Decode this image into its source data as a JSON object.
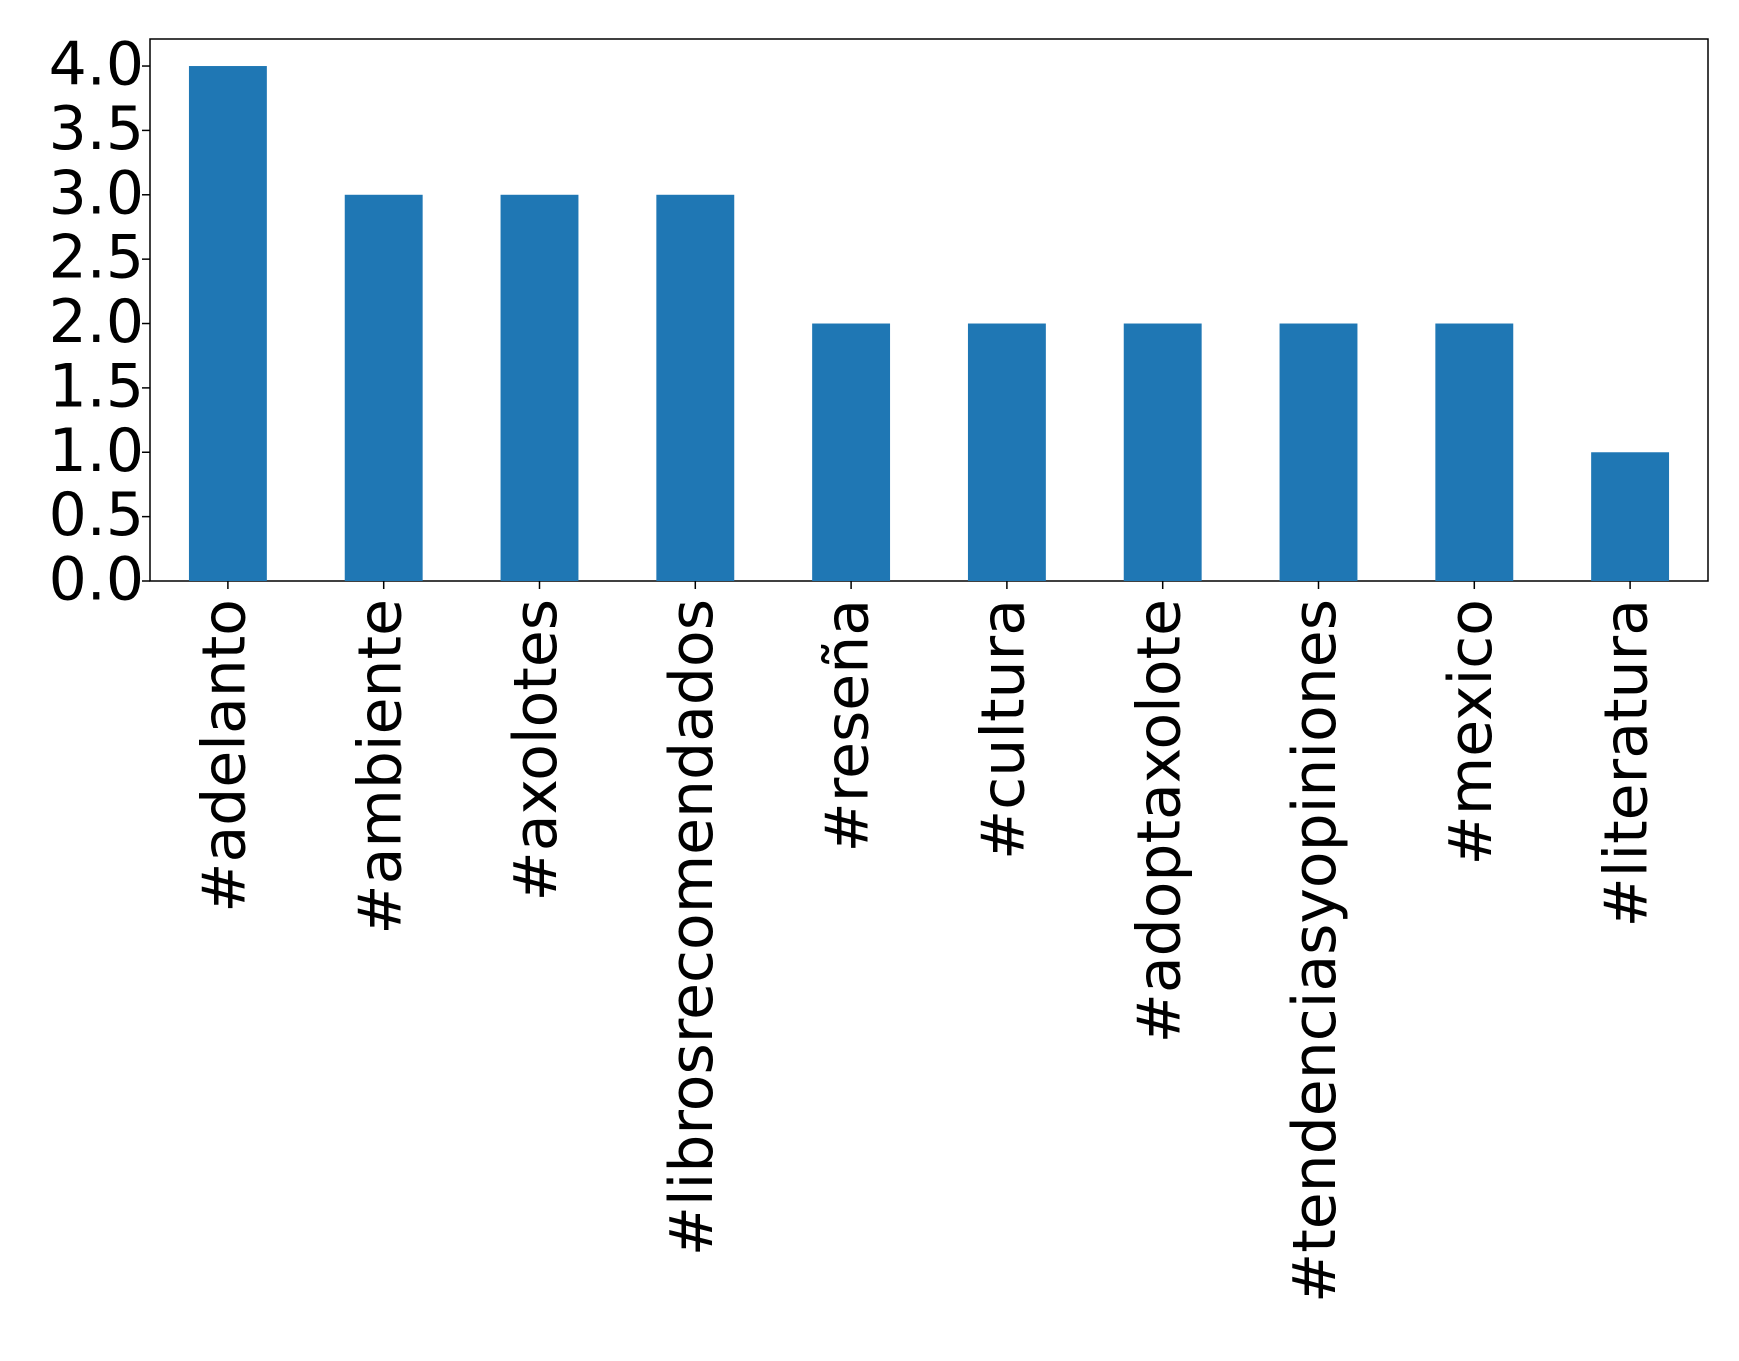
{
  "chart_data": {
    "type": "bar",
    "categories": [
      "#adelanto",
      "#ambiente",
      "#axolotes",
      "#librosrecomendados",
      "#reseña",
      "#cultura",
      "#adoptaxolote",
      "#tendenciasyopiniones",
      "#mexico",
      "#literatura"
    ],
    "values": [
      4,
      3,
      3,
      3,
      2,
      2,
      2,
      2,
      2,
      1
    ],
    "color": "#1f77b4",
    "ylim": [
      0,
      4.21
    ],
    "yticks": [
      {
        "value": 0,
        "label": "0.0"
      },
      {
        "value": 0.5,
        "label": "0.5"
      },
      {
        "value": 1,
        "label": "1.0"
      },
      {
        "value": 1.5,
        "label": "1.5"
      },
      {
        "value": 2,
        "label": "2.0"
      },
      {
        "value": 2.5,
        "label": "2.5"
      },
      {
        "value": 3,
        "label": "3.0"
      },
      {
        "value": 3.5,
        "label": "3.5"
      },
      {
        "value": 4,
        "label": "4.0"
      }
    ],
    "grid": false
  }
}
